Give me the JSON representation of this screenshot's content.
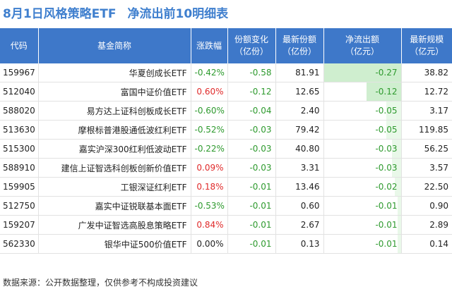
{
  "title": {
    "left": "8月1日风格策略ETF",
    "right": "净流出前10明细表"
  },
  "table": {
    "headers": [
      "代码",
      "基金简称",
      "涨跌幅",
      "份额变化\n（亿份）",
      "最新份额\n（亿份）",
      "净流出额\n（亿元）",
      "最新规模\n（亿元）"
    ],
    "rows": [
      {
        "code": "159967",
        "name": "华夏创成长ETF",
        "change": "-0.42%",
        "share_change": "-0.58",
        "shares": "81.91",
        "outflow": "-0.27",
        "outflow_value": -0.27,
        "aum": "38.82"
      },
      {
        "code": "512040",
        "name": "富国中证价值ETF",
        "change": "0.60%",
        "share_change": "-0.12",
        "shares": "12.65",
        "outflow": "-0.12",
        "outflow_value": -0.12,
        "aum": "12.72"
      },
      {
        "code": "588020",
        "name": "易方达上证科创板成长ETF",
        "change": "-0.60%",
        "share_change": "-0.04",
        "shares": "2.40",
        "outflow": "-0.05",
        "outflow_value": -0.05,
        "aum": "3.17"
      },
      {
        "code": "513630",
        "name": "摩根标普港股通低波红利ETF",
        "change": "-0.52%",
        "share_change": "-0.03",
        "shares": "79.42",
        "outflow": "-0.05",
        "outflow_value": -0.05,
        "aum": "119.85"
      },
      {
        "code": "515300",
        "name": "嘉实沪深300红利低波动ETF",
        "change": "-0.22%",
        "share_change": "-0.03",
        "shares": "40.80",
        "outflow": "-0.03",
        "outflow_value": -0.03,
        "aum": "56.25"
      },
      {
        "code": "588910",
        "name": "建信上证智选科创板创新价值ETF",
        "change": "0.09%",
        "share_change": "-0.03",
        "shares": "3.31",
        "outflow": "-0.03",
        "outflow_value": -0.03,
        "aum": "3.57"
      },
      {
        "code": "159905",
        "name": "工银深证红利ETF",
        "change": "0.18%",
        "share_change": "-0.01",
        "shares": "13.46",
        "outflow": "-0.02",
        "outflow_value": -0.02,
        "aum": "22.50"
      },
      {
        "code": "512750",
        "name": "嘉实中证锐联基本面ETF",
        "change": "-0.53%",
        "share_change": "-0.01",
        "shares": "0.60",
        "outflow": "-0.01",
        "outflow_value": -0.01,
        "aum": "0.90"
      },
      {
        "code": "159207",
        "name": "广发中证智选高股息策略ETF",
        "change": "0.84%",
        "share_change": "-0.01",
        "shares": "2.67",
        "outflow": "-0.01",
        "outflow_value": -0.01,
        "aum": "2.89"
      },
      {
        "code": "562330",
        "name": "银华中证500价值ETF",
        "change": "0.00%",
        "share_change": "-0.01",
        "shares": "0.13",
        "outflow": "-0.01",
        "outflow_value": -0.01,
        "aum": "0.14"
      }
    ]
  },
  "footer": {
    "source": "数据来源：公开数据整理，仅供参考不构成投资建议"
  },
  "colors": {
    "header_bg": "#3e78c9",
    "title_blue": "#3f7fce",
    "negative": "#2e9a2e",
    "positive": "#e02a2a",
    "bar_green": "#e9f8e9"
  }
}
